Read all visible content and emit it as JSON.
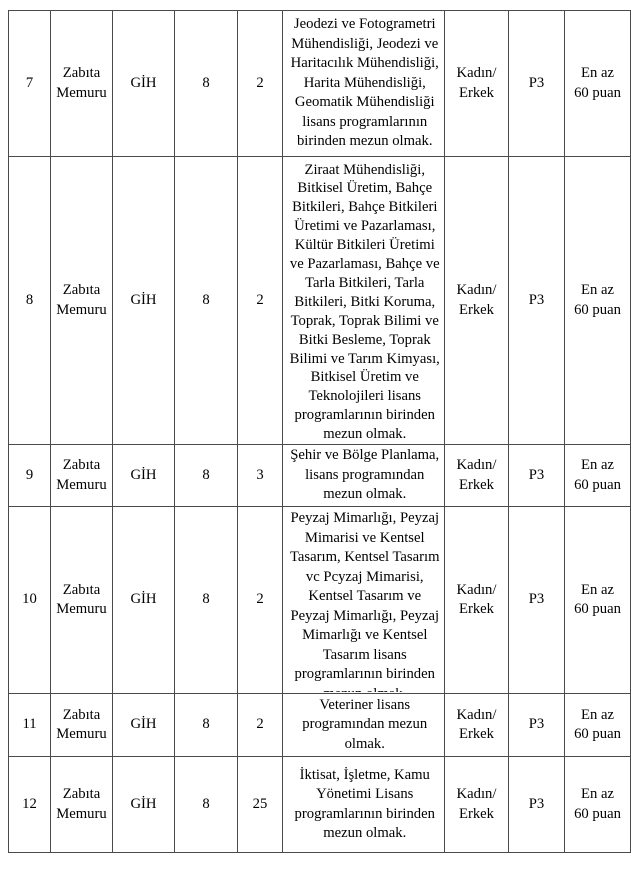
{
  "page": {
    "background_color": "#ffffff",
    "text_color": "#000000",
    "border_color": "#4a4a4a"
  },
  "table": {
    "description": "job-posting-table",
    "rows": [
      {
        "no": "7",
        "title": "Zabıta Memuru",
        "class": "GİH",
        "grade": "8",
        "count": "2",
        "education": "Jeodezi ve Fotogrametri Mühendisliği, Jeodezi ve Haritacılık Mühendisliği, Harita Mühendisliği, Geomatik Mühendisliği lisans programlarının birinden mezun olmak.",
        "gender": "Kadın/ Erkek",
        "score_type": "P3",
        "min_score": "En az 60 puan"
      },
      {
        "no": "8",
        "title": "Zabıta Memuru",
        "class": "GİH",
        "grade": "8",
        "count": "2",
        "education": "Ziraat Mühendisliği, Bitkisel Üretim, Bahçe Bitkileri, Bahçe Bitkileri Üretimi ve Pazarlaması, Kültür Bitkileri Üretimi ve Pazarlaması, Bahçe ve Tarla Bitkileri, Tarla Bitkileri, Bitki Koruma, Toprak, Toprak Bilimi ve Bitki Besleme, Toprak Bilimi ve Tarım Kimyası, Bitkisel Üretim ve Teknolojileri lisans programlarının birinden mezun olmak.",
        "gender": "Kadın/ Erkek",
        "score_type": "P3",
        "min_score": "En az 60 puan"
      },
      {
        "no": "9",
        "title": "Zabıta Memuru",
        "class": "GİH",
        "grade": "8",
        "count": "3",
        "education": "Şehir ve Bölge Planlama, lisans programından mezun olmak.",
        "gender": "Kadın/ Erkek",
        "score_type": "P3",
        "min_score": "En az 60 puan"
      },
      {
        "no": "10",
        "title": "Zabıta Memuru",
        "class": "GİH",
        "grade": "8",
        "count": "2",
        "education": "Peyzaj Mimarlığı, Peyzaj Mimarisi ve Kentsel Tasarım, Kentsel Tasarım vc Pcyzaj Mimarisi, Kentsel Tasarım ve Peyzaj Mimarlığı, Peyzaj Mimarlığı ve Kentsel Tasarım lisans programlarının birinden mezun olmak.",
        "gender": "Kadın/ Erkek",
        "score_type": "P3",
        "min_score": "En az 60 puan"
      },
      {
        "no": "11",
        "title": "Zabıta Memuru",
        "class": "GİH",
        "grade": "8",
        "count": "2",
        "education": "Veteriner lisans programından mezun olmak.",
        "gender": "Kadın/ Erkek",
        "score_type": "P3",
        "min_score": "En az 60 puan"
      },
      {
        "no": "12",
        "title": "Zabıta Memuru",
        "class": "GİH",
        "grade": "8",
        "count": "25",
        "education": "İktisat, İşletme, Kamu Yönetimi Lisans programlarının birinden mezun olmak.",
        "gender": "Kadın/ Erkek",
        "score_type": "P3",
        "min_score": "En az 60 puan"
      }
    ]
  }
}
